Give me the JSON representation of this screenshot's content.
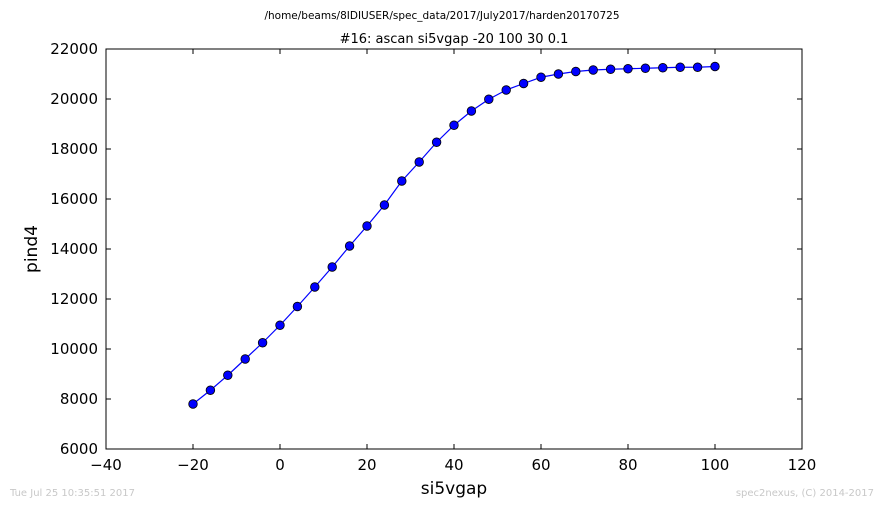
{
  "chart_data": {
    "type": "line",
    "suptitle": "/home/beams/8IDIUSER/spec_data/2017/July2017/harden20170725",
    "title": "#16: ascan  si5vgap -20 100  30 0.1",
    "xlabel": "si5vgap",
    "ylabel": "pind4",
    "xlim": [
      -40,
      120
    ],
    "ylim": [
      6000,
      22000
    ],
    "xticks": [
      -40,
      -20,
      0,
      20,
      40,
      60,
      80,
      100,
      120
    ],
    "xtick_labels": [
      "−40",
      "−20",
      "0",
      "20",
      "40",
      "60",
      "80",
      "100",
      "120"
    ],
    "yticks": [
      6000,
      8000,
      10000,
      12000,
      14000,
      16000,
      18000,
      20000,
      22000
    ],
    "ytick_labels": [
      "6000",
      "8000",
      "10000",
      "12000",
      "14000",
      "16000",
      "18000",
      "20000",
      "22000"
    ],
    "grid": false,
    "color": "#0000ff",
    "x": [
      -20,
      -16,
      -12,
      -8,
      -4,
      0,
      4,
      8,
      12,
      16,
      20,
      24,
      28,
      32,
      36,
      40,
      44,
      48,
      52,
      56,
      60,
      64,
      68,
      72,
      76,
      80,
      84,
      88,
      92,
      96,
      100
    ],
    "y": [
      7800,
      8350,
      8950,
      9600,
      10250,
      10950,
      11700,
      12480,
      13280,
      14120,
      14920,
      15760,
      16720,
      17480,
      18270,
      18950,
      19520,
      19990,
      20360,
      20620,
      20870,
      21000,
      21100,
      21160,
      21190,
      21210,
      21230,
      21250,
      21270,
      21270,
      21300
    ]
  },
  "footer": {
    "timestamp": "Tue Jul 25 10:35:51 2017",
    "credit": "spec2nexus, (C) 2014-2017"
  }
}
